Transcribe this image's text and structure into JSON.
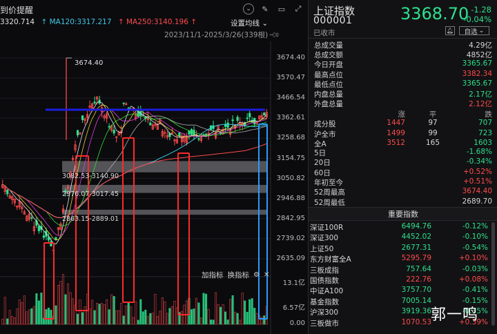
{
  "chart_header": {
    "title": "到价提醒",
    "ma_values": [
      {
        "label": "3320.714",
        "color": "#e0e0e0"
      },
      {
        "label": "↑ MA120:3317.217",
        "color": "#3fc8e4"
      },
      {
        "label": "↑ MA250:3140.196 ↑",
        "color": "#ff4b4b"
      }
    ],
    "setting_label": "设置均线",
    "range_label": "2023/11/1-2025/3/26(339根)"
  },
  "toolbar_icons": [
    "chevron-down-icon",
    "brush-icon",
    "minimize-icon",
    "expand-icon"
  ],
  "price_axis": [
    "3674.40",
    "3570.47",
    "3466.54",
    "3362.61",
    "3258.68",
    "3154.75",
    "3050.82",
    "2946.88",
    "2842.95",
    "2739.02",
    "2635.09"
  ],
  "volume_axis": [
    "13.1亿",
    "6.57亿",
    "0.00"
  ],
  "annotations": {
    "peak": "3674.40",
    "band1": "3082.53-3140.90",
    "band2": "2976.07-3017.45",
    "band3": "2863.15-2889.01"
  },
  "indicator_bar": {
    "add": "加指标",
    "switch": "换指标"
  },
  "quote": {
    "name": "上证指数",
    "code": "000001",
    "price": "3368.70",
    "change": "-1.28",
    "change_pct": "-0.04%",
    "status": "已收市",
    "watch_label": "自选"
  },
  "stats": [
    {
      "label": "总成交量",
      "value": "4.29亿",
      "tone": "white"
    },
    {
      "label": "总成交额",
      "value": "4852亿",
      "tone": "white"
    },
    {
      "label": "今日开盘",
      "value": "3365.67",
      "tone": "green"
    },
    {
      "label": "最高点位",
      "value": "3382.34",
      "tone": "red"
    },
    {
      "label": "最低点位",
      "value": "3365.67",
      "tone": "green"
    },
    {
      "label": "内盘总量",
      "value": "2.17亿",
      "tone": "green"
    },
    {
      "label": "外盘总量",
      "value": "2.12亿",
      "tone": "red"
    }
  ],
  "breadth": {
    "headers": [
      "涨",
      "平",
      "跌"
    ],
    "rows": [
      {
        "label": "成分股",
        "up": "1447",
        "flat": "97",
        "down": "707"
      },
      {
        "label": "沪全市",
        "up": "1499",
        "flat": "99",
        "down": "723"
      },
      {
        "label": "全A",
        "up": "3512",
        "flat": "165",
        "down": "1603"
      }
    ]
  },
  "performance": [
    {
      "label": "5日",
      "value": "-1.68%",
      "tone": "green"
    },
    {
      "label": "20日",
      "value": "-0.34%",
      "tone": "green"
    },
    {
      "label": "60日",
      "value": "+0.52%",
      "tone": "red"
    },
    {
      "label": "年初至今",
      "value": "+0.51%",
      "tone": "red"
    },
    {
      "label": "52周最高",
      "value": "3674.40",
      "tone": "red"
    },
    {
      "label": "52周最低",
      "value": "2689.70",
      "tone": "white"
    }
  ],
  "major_indices": {
    "title": "重要指数",
    "rows": [
      {
        "name": "深证100R",
        "price": "6494.76",
        "change": "-0.12%",
        "tone": "green"
      },
      {
        "name": "深证300",
        "price": "4452.02",
        "change": "-0.10%",
        "tone": "green"
      },
      {
        "name": "上证50",
        "price": "2677.31",
        "change": "-0.54%",
        "tone": "green"
      },
      {
        "name": "东方财富全A",
        "price": "5295.79",
        "change": "+0.10%",
        "tone": "red"
      },
      {
        "name": "三板成指",
        "price": "757.64",
        "change": "-0.03%",
        "tone": "green"
      },
      {
        "name": "国债指数",
        "price": "222.76",
        "change": "+0.08%",
        "tone": "red"
      },
      {
        "name": "中证A100",
        "price": "3757.70",
        "change": "-0.41%",
        "tone": "green"
      },
      {
        "name": "基金指数",
        "price": "7005.14",
        "change": "-0.15%",
        "tone": "green"
      },
      {
        "name": "沪深300",
        "price": "3919.36",
        "change": "-0.35%",
        "tone": "green"
      },
      {
        "name": "三板做市",
        "price": "1070.53",
        "change": "+0.39%",
        "tone": "red"
      }
    ]
  },
  "watermark": "郭一鸣",
  "colors": {
    "up": "#ff4b4b",
    "down": "#2ee08d",
    "ma120": "#3fc8e4",
    "ma250": "#ff4b4b",
    "resistance": "#1e1ee0"
  }
}
